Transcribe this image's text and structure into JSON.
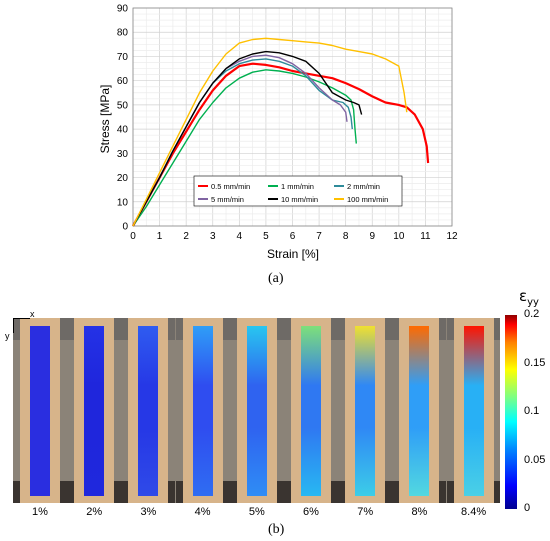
{
  "chart_data": {
    "type": "line",
    "panel_label": "(a)",
    "xlabel": "Strain [%]",
    "ylabel": "Stress [MPa]",
    "xlim": [
      0,
      12
    ],
    "ylim": [
      0,
      90
    ],
    "xticks": [
      0,
      1,
      2,
      3,
      4,
      5,
      6,
      7,
      8,
      9,
      10,
      11,
      12
    ],
    "yticks": [
      0,
      10,
      20,
      30,
      40,
      50,
      60,
      70,
      80,
      90
    ],
    "grid": true,
    "legend_position": "bottom-right",
    "series": [
      {
        "name": "0.5 mm/min",
        "color": "#ff0000",
        "x": [
          0,
          0.5,
          1,
          1.5,
          2,
          2.5,
          3,
          3.5,
          4,
          4.5,
          5,
          5.5,
          6,
          6.5,
          7,
          7.5,
          8,
          8.5,
          9,
          9.5,
          10,
          10.3,
          10.6,
          10.9,
          11.05,
          11.1
        ],
        "y": [
          0,
          10,
          20,
          30,
          39,
          48,
          56,
          62,
          66,
          67,
          66.5,
          65.5,
          64,
          63,
          62,
          61,
          59,
          56.5,
          53.5,
          51,
          50,
          49,
          46,
          40,
          33,
          26
        ]
      },
      {
        "name": "1 mm/min",
        "color": "#00b050",
        "x": [
          0,
          0.5,
          1,
          1.5,
          2,
          2.5,
          3,
          3.5,
          4,
          4.5,
          5,
          5.5,
          6,
          6.5,
          7,
          7.5,
          8,
          8.2,
          8.3,
          8.35,
          8.4
        ],
        "y": [
          0,
          8,
          17,
          26,
          35,
          44,
          51,
          57,
          61,
          63.5,
          64.5,
          64,
          63,
          61.5,
          59.5,
          57,
          54,
          52,
          48,
          40,
          34
        ]
      },
      {
        "name": "2 mm/min",
        "color": "#2e8b9a",
        "x": [
          0,
          0.5,
          1,
          1.5,
          2,
          2.5,
          3,
          3.5,
          4,
          4.5,
          5,
          5.5,
          6,
          6.5,
          7,
          7.5,
          7.9,
          8.1,
          8.2,
          8.25
        ],
        "y": [
          0,
          10,
          20,
          31,
          41,
          51,
          59,
          64,
          67,
          68.5,
          69,
          68,
          66,
          62,
          56,
          52,
          51,
          49,
          45,
          40
        ]
      },
      {
        "name": "5 mm/min",
        "color": "#8064a2",
        "x": [
          0,
          0.5,
          1,
          1.5,
          2,
          2.5,
          3,
          3.5,
          4,
          4.5,
          5,
          5.5,
          6,
          6.5,
          7,
          7.5,
          7.8,
          8,
          8.05
        ],
        "y": [
          0,
          10,
          20,
          31,
          41,
          51,
          59,
          65,
          68,
          70,
          70.5,
          69.5,
          67,
          63,
          57,
          52,
          50,
          47,
          43
        ]
      },
      {
        "name": "10 mm/min",
        "color": "#000000",
        "x": [
          0,
          0.5,
          1,
          1.5,
          2,
          2.5,
          3,
          3.5,
          4,
          4.5,
          5,
          5.5,
          6,
          6.5,
          7,
          7.5,
          8,
          8.3,
          8.5,
          8.6
        ],
        "y": [
          0,
          10,
          20,
          31,
          41,
          51,
          59,
          65,
          69,
          71,
          72,
          71.5,
          70,
          68,
          63,
          55,
          52,
          51,
          50,
          46
        ]
      },
      {
        "name": "100 mm/min",
        "color": "#ffc000",
        "x": [
          0,
          0.5,
          1,
          1.5,
          2,
          2.5,
          3,
          3.5,
          4,
          4.5,
          5,
          5.5,
          6,
          6.5,
          7,
          7.5,
          8,
          8.5,
          9,
          9.5,
          10,
          10.2,
          10.3
        ],
        "y": [
          0,
          11,
          22,
          33,
          44,
          55,
          64,
          71,
          75.5,
          77,
          77.5,
          77,
          76.5,
          76,
          75.5,
          74.5,
          73,
          72,
          71,
          69,
          66,
          55,
          47
        ]
      }
    ]
  },
  "panel_b": {
    "label": "(b)",
    "axis_x": "x",
    "axis_y": "y",
    "colorbar_title": "ε",
    "colorbar_subscript": "yy",
    "colorbar_ticks": [
      "0.2",
      "0.15",
      "0.1",
      "0.05",
      "0"
    ],
    "colorbar_range": [
      0,
      0.2
    ],
    "strain_levels": [
      "1%",
      "2%",
      "3%",
      "4%",
      "5%",
      "6%",
      "7%",
      "8%",
      "8.4%"
    ],
    "field_top_colors": [
      "#2a2ee0",
      "#2432e6",
      "#2f5cf0",
      "#2f9ef7",
      "#28c6f0",
      "#7ee07a",
      "#f0e030",
      "#ff6a00",
      "#ff1400"
    ],
    "field_mid_colors": [
      "#2a2ee0",
      "#1f26dc",
      "#2638e6",
      "#2f4df0",
      "#2f63f0",
      "#2f78f2",
      "#2f88f5",
      "#2f9ef7",
      "#28b0f5"
    ],
    "field_bottom_colors": [
      "#2a2ee0",
      "#1f28dd",
      "#2f4ae8",
      "#2f6df2",
      "#2f8df5",
      "#28b8f2",
      "#3ccde8",
      "#52d8e0",
      "#4ad0e6"
    ]
  }
}
